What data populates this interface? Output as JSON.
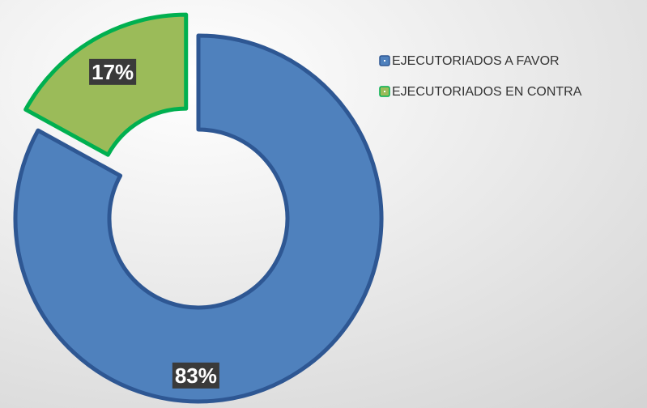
{
  "chart_data": {
    "type": "donut",
    "categories": [
      "EJECUTORIADOS A FAVOR",
      "EJECUTORIADOS EN CONTRA"
    ],
    "values": [
      83,
      17
    ],
    "value_labels": [
      "83%",
      "17%"
    ],
    "colors": [
      "#4f81bd",
      "#9bbb59"
    ],
    "edge_colors": [
      "#2e5793",
      "#00b050"
    ],
    "legend": "top-right"
  }
}
